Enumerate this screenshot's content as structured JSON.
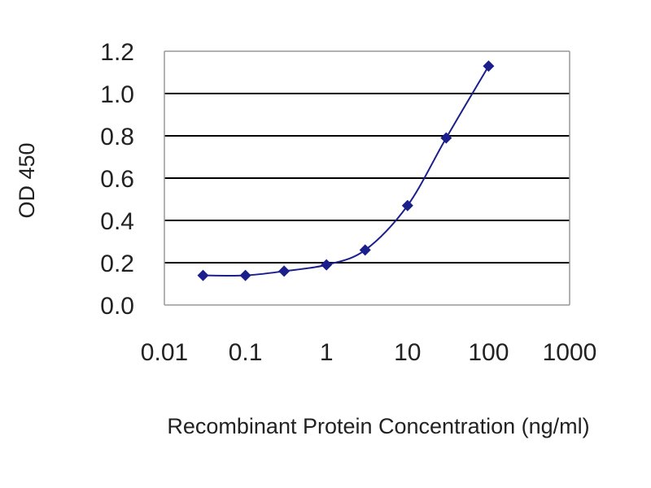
{
  "chart_data": {
    "type": "line",
    "title": "",
    "xlabel": "Recombinant Protein Concentration (ng/ml)",
    "ylabel": "OD 450",
    "x_scale": "log",
    "xlim": [
      0.01,
      1000
    ],
    "ylim": [
      0.0,
      1.2
    ],
    "x_ticks": [
      0.01,
      0.1,
      1,
      10,
      100,
      1000
    ],
    "x_tick_labels": [
      "0.01",
      "0.1",
      "1",
      "10",
      "100",
      "1000"
    ],
    "y_ticks": [
      0.0,
      0.2,
      0.4,
      0.6,
      0.8,
      1.0,
      1.2
    ],
    "y_tick_labels": [
      "0.0",
      "0.2",
      "0.4",
      "0.6",
      "0.8",
      "1.0",
      "1.2"
    ],
    "grid": "horizontal",
    "legend": "none",
    "series": [
      {
        "x": [
          0.03,
          0.1,
          0.3,
          1,
          3,
          10,
          30,
          100
        ],
        "y": [
          0.14,
          0.14,
          0.16,
          0.19,
          0.26,
          0.47,
          0.79,
          1.13
        ],
        "marker": "diamond",
        "color": "#1a1f8c"
      }
    ]
  },
  "colors": {
    "series": "#1a1f8c",
    "grid": "#000000",
    "plot_border": "#999999"
  }
}
